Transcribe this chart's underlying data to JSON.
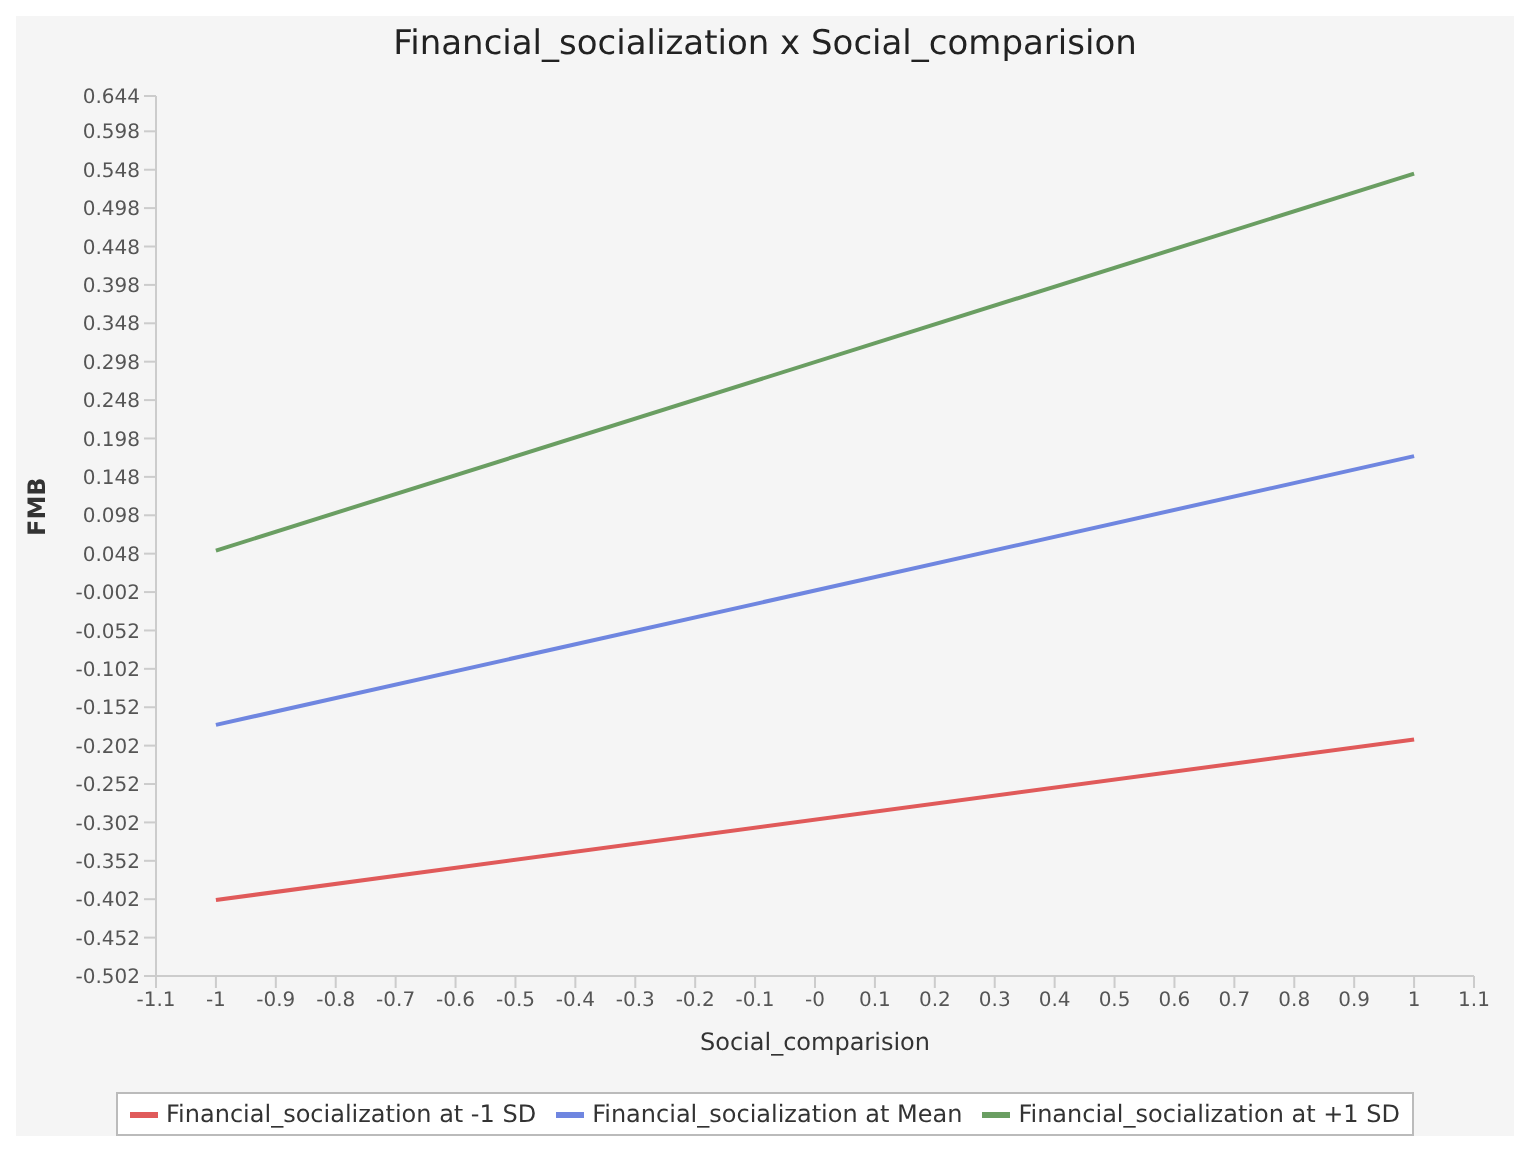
{
  "chart_data": {
    "type": "line",
    "title": "Financial_socialization x Social_comparision",
    "xlabel": "Social_comparision",
    "ylabel": "FMB",
    "x": [
      -1,
      1
    ],
    "series": [
      {
        "name": "Financial_socialization at -1 SD",
        "color": "#e05a5a",
        "values": [
          -0.403,
          -0.194
        ]
      },
      {
        "name": "Financial_socialization at Mean",
        "color": "#6f86e0",
        "values": [
          -0.175,
          0.175
        ]
      },
      {
        "name": "Financial_socialization at +1 SD",
        "color": "#6a9e62",
        "values": [
          0.052,
          0.543
        ]
      }
    ],
    "xlim": [
      -1.1,
      1.1
    ],
    "xticks": [
      -1.1,
      -1,
      -0.9,
      -0.8,
      -0.7,
      -0.6,
      -0.5,
      -0.4,
      -0.3,
      -0.2,
      -0.1,
      {
        "value": 0,
        "label": "-0"
      },
      0.1,
      0.2,
      0.3,
      0.4,
      0.5,
      0.6,
      0.7,
      0.8,
      0.9,
      1,
      1.1
    ],
    "ylim": [
      -0.502,
      0.644
    ],
    "yticks": [
      -0.502,
      -0.452,
      -0.402,
      -0.352,
      -0.302,
      -0.252,
      -0.202,
      -0.152,
      -0.102,
      -0.052,
      -0.002,
      0.048,
      0.098,
      0.148,
      0.198,
      0.248,
      0.298,
      0.348,
      0.398,
      0.448,
      0.498,
      0.548,
      0.598,
      0.644
    ],
    "grid": false,
    "legend": "bottom",
    "marker": "none",
    "line_style": "solid"
  }
}
